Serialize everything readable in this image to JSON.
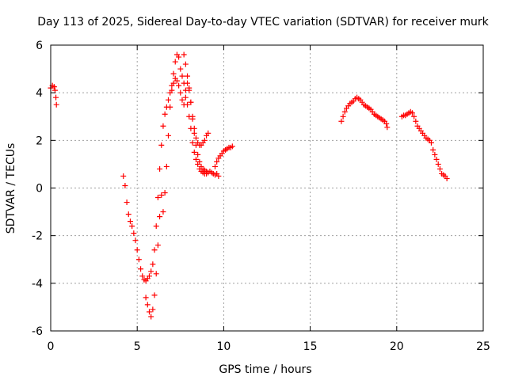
{
  "chart_data": {
    "type": "scatter",
    "title": "Day 113 of 2025, Sidereal Day-to-day VTEC variation (SDTVAR) for receiver murk",
    "xlabel": "GPS time / hours",
    "ylabel": "SDTVAR / TECUs",
    "xlim": [
      0,
      25
    ],
    "ylim": [
      -6,
      6
    ],
    "xticks": [
      0,
      5,
      10,
      15,
      20,
      25
    ],
    "yticks": [
      -6,
      -4,
      -2,
      0,
      2,
      4,
      6
    ],
    "xtick_labels": [
      "0",
      "5",
      "10",
      "15",
      "20",
      "25"
    ],
    "ytick_labels": [
      "-6",
      "-4",
      "-2",
      "0",
      "2",
      "4",
      "6"
    ],
    "grid": true,
    "marker": "+",
    "color": "#ff0000",
    "series": [
      {
        "name": "SDTVAR",
        "points": [
          [
            0.0,
            4.2
          ],
          [
            0.1,
            4.3
          ],
          [
            0.2,
            4.25
          ],
          [
            0.25,
            4.1
          ],
          [
            0.3,
            3.8
          ],
          [
            0.33,
            3.5
          ],
          [
            4.2,
            0.5
          ],
          [
            4.3,
            0.1
          ],
          [
            4.4,
            -0.6
          ],
          [
            4.5,
            -1.1
          ],
          [
            4.6,
            -1.4
          ],
          [
            4.7,
            -1.6
          ],
          [
            4.8,
            -1.9
          ],
          [
            4.9,
            -2.2
          ],
          [
            5.0,
            -2.6
          ],
          [
            5.1,
            -3.0
          ],
          [
            5.2,
            -3.4
          ],
          [
            5.3,
            -3.7
          ],
          [
            5.4,
            -3.85
          ],
          [
            5.5,
            -3.9
          ],
          [
            5.6,
            -3.8
          ],
          [
            5.7,
            -3.7
          ],
          [
            5.8,
            -3.5
          ],
          [
            5.9,
            -3.2
          ],
          [
            6.0,
            -2.6
          ],
          [
            6.1,
            -1.6
          ],
          [
            6.2,
            -0.4
          ],
          [
            6.3,
            0.8
          ],
          [
            6.4,
            1.8
          ],
          [
            6.5,
            2.6
          ],
          [
            6.6,
            3.1
          ],
          [
            6.7,
            3.4
          ],
          [
            6.8,
            3.7
          ],
          [
            6.9,
            4.0
          ],
          [
            7.0,
            4.3
          ],
          [
            7.1,
            4.8
          ],
          [
            7.2,
            5.3
          ],
          [
            7.3,
            5.6
          ],
          [
            7.4,
            5.5
          ],
          [
            7.5,
            5.0
          ],
          [
            7.6,
            4.7
          ],
          [
            7.7,
            4.4
          ],
          [
            7.8,
            4.1
          ],
          [
            7.9,
            3.5
          ],
          [
            8.0,
            3.0
          ],
          [
            8.1,
            2.5
          ],
          [
            8.2,
            1.9
          ],
          [
            8.3,
            1.5
          ],
          [
            8.4,
            1.2
          ],
          [
            8.5,
            1.0
          ],
          [
            8.6,
            0.8
          ],
          [
            8.7,
            0.7
          ],
          [
            8.8,
            0.65
          ],
          [
            8.9,
            0.6
          ],
          [
            9.0,
            0.6
          ],
          [
            9.1,
            0.65
          ],
          [
            9.2,
            0.7
          ],
          [
            9.3,
            0.65
          ],
          [
            9.4,
            0.6
          ],
          [
            9.5,
            0.55
          ],
          [
            9.6,
            0.6
          ],
          [
            9.7,
            0.5
          ],
          [
            5.5,
            -4.6
          ],
          [
            5.6,
            -4.9
          ],
          [
            5.7,
            -5.2
          ],
          [
            5.8,
            -5.4
          ],
          [
            5.9,
            -5.1
          ],
          [
            6.0,
            -4.5
          ],
          [
            6.1,
            -3.6
          ],
          [
            6.2,
            -2.4
          ],
          [
            6.3,
            -1.2
          ],
          [
            6.4,
            -0.3
          ],
          [
            6.5,
            -1.0
          ],
          [
            6.6,
            -0.2
          ],
          [
            6.7,
            0.9
          ],
          [
            6.8,
            2.2
          ],
          [
            6.9,
            3.4
          ],
          [
            7.0,
            4.1
          ],
          [
            7.1,
            4.4
          ],
          [
            7.2,
            4.6
          ],
          [
            7.3,
            4.5
          ],
          [
            7.4,
            4.3
          ],
          [
            7.5,
            4.0
          ],
          [
            7.6,
            3.7
          ],
          [
            7.7,
            3.5
          ],
          [
            7.8,
            3.8
          ],
          [
            7.9,
            4.4
          ],
          [
            8.0,
            4.1
          ],
          [
            8.1,
            3.6
          ],
          [
            8.2,
            3.0
          ],
          [
            8.3,
            2.5
          ],
          [
            8.4,
            2.1
          ],
          [
            8.5,
            1.9
          ],
          [
            8.6,
            1.8
          ],
          [
            8.7,
            1.8
          ],
          [
            8.8,
            1.9
          ],
          [
            8.9,
            2.0
          ],
          [
            9.0,
            2.2
          ],
          [
            9.1,
            2.3
          ],
          [
            7.7,
            5.6
          ],
          [
            7.8,
            5.2
          ],
          [
            7.9,
            4.7
          ],
          [
            8.0,
            4.2
          ],
          [
            8.1,
            3.6
          ],
          [
            8.2,
            2.9
          ],
          [
            8.3,
            2.3
          ],
          [
            8.4,
            1.8
          ],
          [
            8.5,
            1.4
          ],
          [
            8.6,
            1.1
          ],
          [
            8.7,
            0.9
          ],
          [
            8.8,
            0.8
          ],
          [
            8.9,
            0.75
          ],
          [
            9.0,
            0.7
          ],
          [
            9.5,
            0.9
          ],
          [
            9.6,
            1.1
          ],
          [
            9.7,
            1.25
          ],
          [
            9.8,
            1.35
          ],
          [
            9.9,
            1.45
          ],
          [
            10.0,
            1.55
          ],
          [
            10.1,
            1.6
          ],
          [
            10.2,
            1.65
          ],
          [
            10.3,
            1.7
          ],
          [
            10.4,
            1.7
          ],
          [
            10.5,
            1.75
          ],
          [
            16.8,
            2.8
          ],
          [
            16.9,
            3.0
          ],
          [
            17.0,
            3.2
          ],
          [
            17.1,
            3.35
          ],
          [
            17.2,
            3.45
          ],
          [
            17.3,
            3.55
          ],
          [
            17.4,
            3.6
          ],
          [
            17.5,
            3.65
          ],
          [
            17.6,
            3.75
          ],
          [
            17.7,
            3.8
          ],
          [
            17.8,
            3.75
          ],
          [
            17.9,
            3.7
          ],
          [
            18.0,
            3.6
          ],
          [
            18.1,
            3.5
          ],
          [
            18.2,
            3.45
          ],
          [
            18.3,
            3.4
          ],
          [
            18.4,
            3.35
          ],
          [
            18.5,
            3.3
          ],
          [
            18.6,
            3.2
          ],
          [
            18.7,
            3.1
          ],
          [
            18.8,
            3.05
          ],
          [
            18.9,
            3.0
          ],
          [
            19.0,
            2.95
          ],
          [
            19.1,
            2.9
          ],
          [
            19.2,
            2.85
          ],
          [
            19.3,
            2.8
          ],
          [
            19.4,
            2.7
          ],
          [
            19.45,
            2.55
          ],
          [
            20.3,
            3.0
          ],
          [
            20.4,
            3.05
          ],
          [
            20.5,
            3.05
          ],
          [
            20.6,
            3.1
          ],
          [
            20.7,
            3.15
          ],
          [
            20.8,
            3.2
          ],
          [
            20.9,
            3.15
          ],
          [
            21.0,
            3.0
          ],
          [
            21.1,
            2.8
          ],
          [
            21.2,
            2.6
          ],
          [
            21.3,
            2.5
          ],
          [
            21.4,
            2.4
          ],
          [
            21.5,
            2.3
          ],
          [
            21.6,
            2.2
          ],
          [
            21.7,
            2.1
          ],
          [
            21.8,
            2.05
          ],
          [
            21.9,
            2.0
          ],
          [
            22.0,
            1.9
          ],
          [
            22.1,
            1.6
          ],
          [
            22.2,
            1.4
          ],
          [
            22.3,
            1.2
          ],
          [
            22.4,
            1.0
          ],
          [
            22.5,
            0.8
          ],
          [
            22.6,
            0.6
          ],
          [
            22.7,
            0.55
          ],
          [
            22.8,
            0.5
          ],
          [
            22.9,
            0.4
          ]
        ]
      }
    ]
  }
}
